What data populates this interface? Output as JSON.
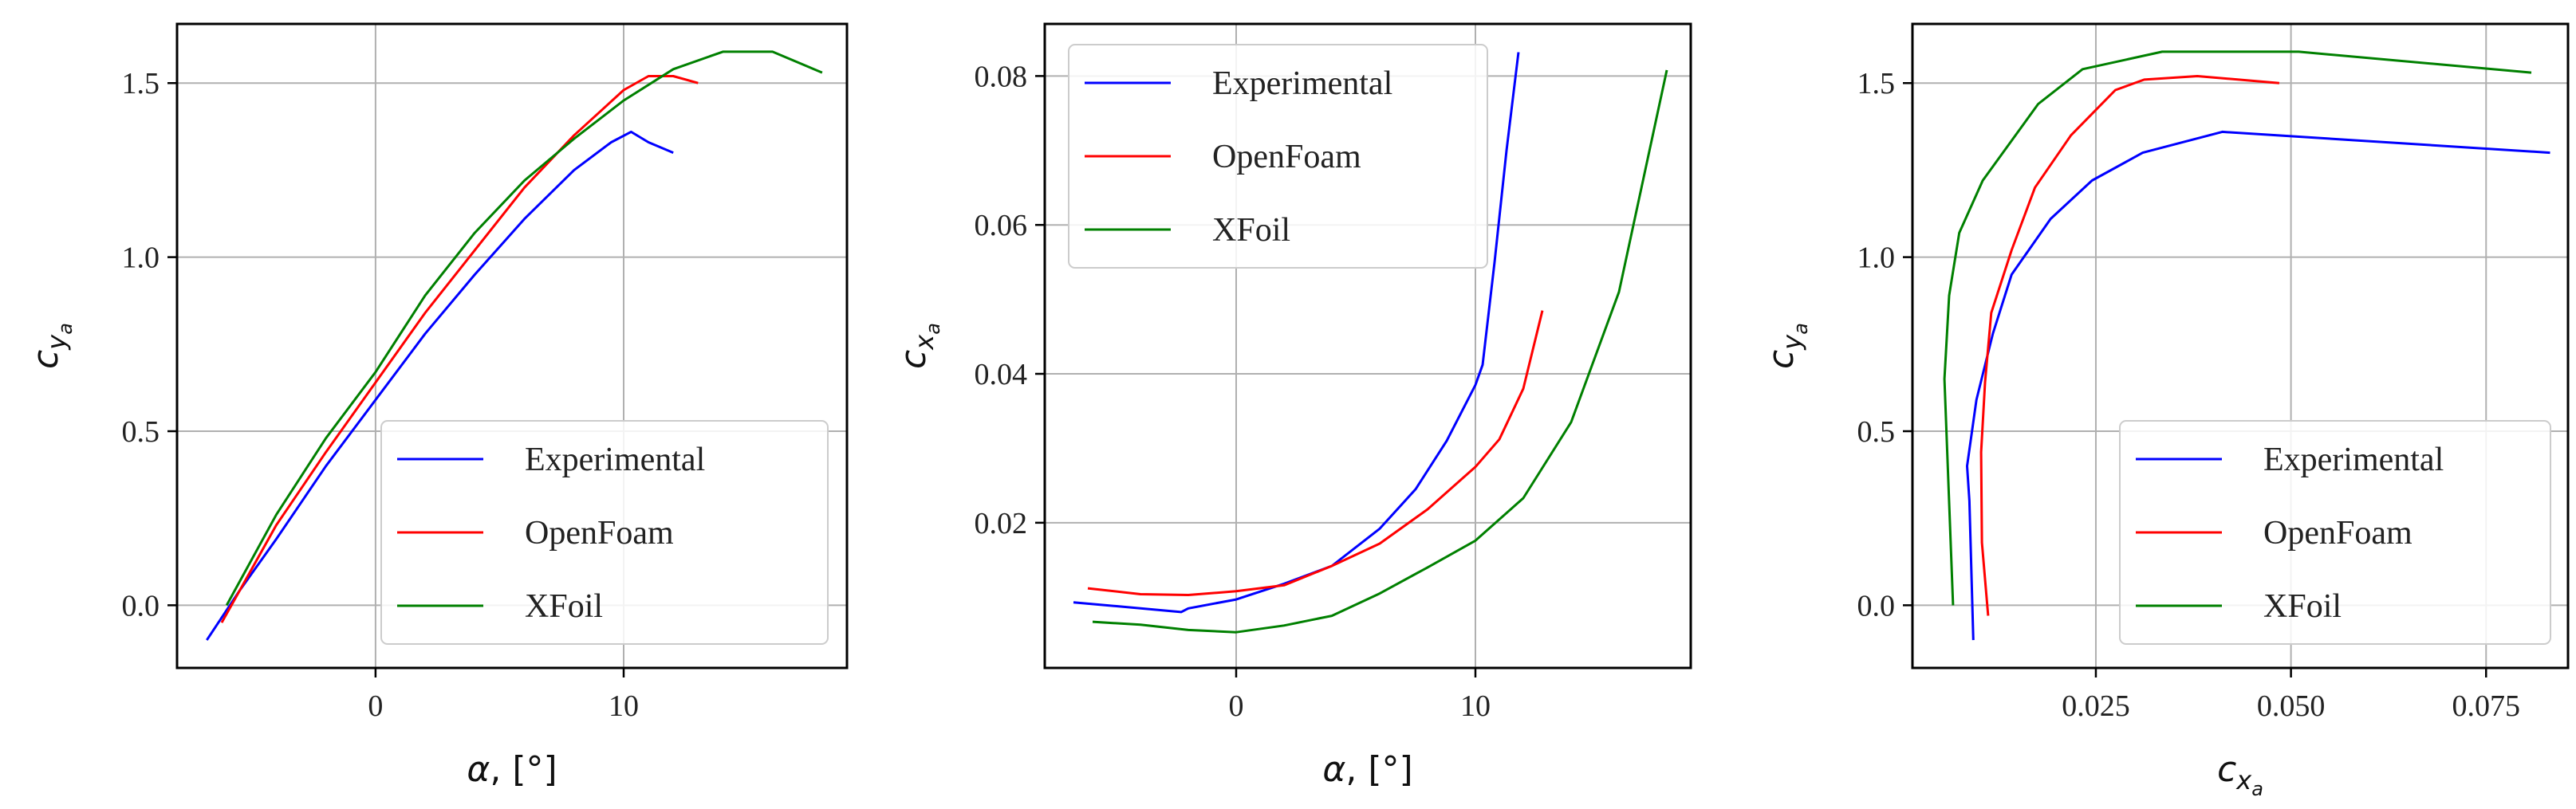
{
  "chart_data": [
    {
      "type": "line",
      "xlabel": "α, [°]",
      "ylabel": "c_ya",
      "xlim": [
        -8,
        19
      ],
      "ylim": [
        -0.18,
        1.67
      ],
      "xticks": [
        0,
        10
      ],
      "yticks": [
        0.0,
        0.5,
        1.0,
        1.5
      ],
      "xtick_labels": [
        "0",
        "10"
      ],
      "ytick_labels": [
        "0.0",
        "0.5",
        "1.0",
        "1.5"
      ],
      "grid": true,
      "legend_position": "bottom-right",
      "series": [
        {
          "name": "Experimental",
          "color": "#0000ff",
          "x": [
            -6.8,
            -5.5,
            -4.0,
            -2.0,
            0.0,
            2.0,
            4.0,
            6.0,
            8.0,
            9.5,
            10.3,
            11.0,
            12.0
          ],
          "y": [
            -0.1,
            0.04,
            0.19,
            0.4,
            0.59,
            0.78,
            0.95,
            1.11,
            1.25,
            1.33,
            1.36,
            1.33,
            1.3
          ]
        },
        {
          "name": "OpenFoam",
          "color": "#ff0000",
          "x": [
            -6.2,
            -4.0,
            -2.0,
            0.0,
            2.0,
            4.0,
            6.0,
            8.0,
            10.0,
            11.0,
            12.0,
            13.0
          ],
          "y": [
            -0.05,
            0.23,
            0.44,
            0.64,
            0.84,
            1.02,
            1.2,
            1.35,
            1.48,
            1.52,
            1.52,
            1.5
          ]
        },
        {
          "name": "XFoil",
          "color": "#008000",
          "x": [
            -6.0,
            -4.0,
            -2.0,
            0.0,
            2.0,
            4.0,
            6.0,
            8.0,
            10.0,
            12.0,
            14.0,
            16.0,
            18.0
          ],
          "y": [
            0.0,
            0.26,
            0.48,
            0.67,
            0.89,
            1.07,
            1.22,
            1.34,
            1.45,
            1.54,
            1.59,
            1.59,
            1.53
          ]
        }
      ]
    },
    {
      "type": "line",
      "xlabel": "α, [°]",
      "ylabel": "c_xa",
      "xlim": [
        -8,
        19
      ],
      "ylim": [
        0.0005,
        0.087
      ],
      "xticks": [
        0,
        10
      ],
      "yticks": [
        0.02,
        0.04,
        0.06,
        0.08
      ],
      "xtick_labels": [
        "0",
        "10"
      ],
      "ytick_labels": [
        "0.02",
        "0.04",
        "0.06",
        "0.08"
      ],
      "grid": true,
      "legend_position": "top-left",
      "series": [
        {
          "name": "Experimental",
          "color": "#0000ff",
          "x": [
            -6.8,
            -5.0,
            -2.3,
            -2.0,
            0.0,
            2.0,
            4.0,
            6.0,
            7.5,
            8.8,
            10.0,
            10.3,
            10.8,
            11.3,
            11.8
          ],
          "y": [
            0.0093,
            0.0088,
            0.008,
            0.0085,
            0.0097,
            0.0118,
            0.0142,
            0.0192,
            0.0245,
            0.031,
            0.0385,
            0.0412,
            0.055,
            0.07,
            0.0832
          ]
        },
        {
          "name": "OpenFoam",
          "color": "#ff0000",
          "x": [
            -6.2,
            -4.0,
            -2.0,
            0.0,
            2.0,
            4.0,
            6.0,
            8.0,
            10.0,
            11.0,
            12.0,
            12.8
          ],
          "y": [
            0.0112,
            0.0104,
            0.0103,
            0.0108,
            0.0116,
            0.0142,
            0.0172,
            0.0218,
            0.0275,
            0.0312,
            0.038,
            0.0485
          ]
        },
        {
          "name": "XFoil",
          "color": "#008000",
          "x": [
            -6.0,
            -4.0,
            -2.0,
            0.0,
            2.0,
            4.0,
            6.0,
            8.0,
            10.0,
            12.0,
            14.0,
            16.0,
            18.0
          ],
          "y": [
            0.0067,
            0.0063,
            0.0056,
            0.0053,
            0.0062,
            0.0075,
            0.0105,
            0.014,
            0.0176,
            0.0233,
            0.0335,
            0.051,
            0.0808
          ]
        }
      ]
    },
    {
      "type": "line",
      "xlabel": "c_xa",
      "ylabel": "c_ya",
      "xlim": [
        0.0015,
        0.0855
      ],
      "ylim": [
        -0.18,
        1.67
      ],
      "xticks": [
        0.025,
        0.05,
        0.075
      ],
      "yticks": [
        0.0,
        0.5,
        1.0,
        1.5
      ],
      "xtick_labels": [
        "0.025",
        "0.050",
        "0.075"
      ],
      "ytick_labels": [
        "0.0",
        "0.5",
        "1.0",
        "1.5"
      ],
      "grid": true,
      "legend_position": "bottom-right",
      "series": [
        {
          "name": "Experimental",
          "color": "#0000ff",
          "x": [
            0.0093,
            0.0088,
            0.0085,
            0.0097,
            0.0118,
            0.0142,
            0.0192,
            0.0245,
            0.031,
            0.0412,
            0.0832
          ],
          "y": [
            -0.1,
            0.3,
            0.4,
            0.59,
            0.78,
            0.95,
            1.11,
            1.22,
            1.3,
            1.36,
            1.3
          ]
        },
        {
          "name": "OpenFoam",
          "color": "#ff0000",
          "x": [
            0.0112,
            0.0104,
            0.0103,
            0.0108,
            0.0116,
            0.0142,
            0.0172,
            0.0218,
            0.0275,
            0.0312,
            0.038,
            0.0485
          ],
          "y": [
            -0.03,
            0.18,
            0.44,
            0.64,
            0.84,
            1.02,
            1.2,
            1.35,
            1.48,
            1.51,
            1.52,
            1.5
          ]
        },
        {
          "name": "XFoil",
          "color": "#008000",
          "x": [
            0.0067,
            0.0056,
            0.0062,
            0.0075,
            0.0105,
            0.0176,
            0.0233,
            0.0335,
            0.051,
            0.0808
          ],
          "y": [
            0.0,
            0.65,
            0.89,
            1.07,
            1.22,
            1.44,
            1.54,
            1.59,
            1.59,
            1.53
          ]
        }
      ]
    }
  ]
}
